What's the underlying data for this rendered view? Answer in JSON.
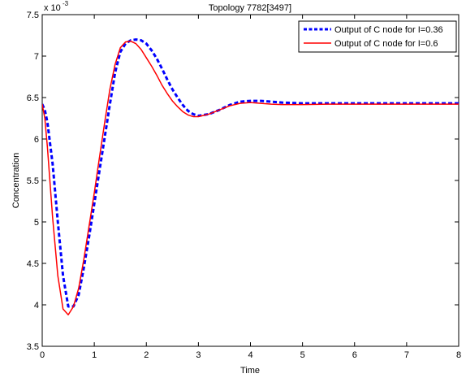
{
  "chart_data": {
    "type": "line",
    "title": "Topology 7782[3497]",
    "xlabel": "Time",
    "ylabel": "Concentration",
    "y_exponent_label": "x 10",
    "y_exponent_power": "-3",
    "xlim": [
      0,
      8
    ],
    "ylim": [
      3.5,
      7.5
    ],
    "x_ticks": [
      0,
      1,
      2,
      3,
      4,
      5,
      6,
      7,
      8
    ],
    "y_ticks": [
      3.5,
      4,
      4.5,
      5,
      5.5,
      6,
      6.5,
      7,
      7.5
    ],
    "x_tick_labels": [
      "0",
      "1",
      "2",
      "3",
      "4",
      "5",
      "6",
      "7",
      "8"
    ],
    "y_tick_labels": [
      "3.5",
      "4",
      "4.5",
      "5",
      "5.5",
      "6",
      "6.5",
      "7",
      "7.5"
    ],
    "grid": false,
    "legend_position": "top-right",
    "series": [
      {
        "name": "Output of C node for I=0.36",
        "color": "#0000ff",
        "style": "dashed",
        "x": [
          0,
          0.05,
          0.1,
          0.2,
          0.3,
          0.4,
          0.5,
          0.6,
          0.7,
          0.8,
          0.9,
          1.0,
          1.1,
          1.2,
          1.3,
          1.4,
          1.5,
          1.6,
          1.7,
          1.8,
          1.9,
          2.0,
          2.1,
          2.2,
          2.3,
          2.4,
          2.5,
          2.6,
          2.7,
          2.8,
          2.9,
          3.0,
          3.2,
          3.4,
          3.6,
          3.8,
          4.0,
          4.2,
          4.4,
          4.6,
          4.8,
          5.0,
          5.5,
          6.0,
          6.5,
          7.0,
          7.5,
          8.0
        ],
        "values": [
          6.42,
          6.35,
          6.2,
          5.7,
          5.0,
          4.35,
          3.98,
          3.98,
          4.12,
          4.45,
          4.82,
          5.22,
          5.62,
          6.02,
          6.42,
          6.8,
          7.05,
          7.15,
          7.19,
          7.2,
          7.19,
          7.15,
          7.07,
          6.97,
          6.85,
          6.72,
          6.6,
          6.5,
          6.41,
          6.34,
          6.3,
          6.28,
          6.3,
          6.35,
          6.41,
          6.45,
          6.46,
          6.46,
          6.45,
          6.44,
          6.435,
          6.43,
          6.43,
          6.43,
          6.43,
          6.43,
          6.43,
          6.43
        ]
      },
      {
        "name": "Output of C node for I=0.6",
        "color": "#ff0000",
        "style": "solid",
        "x": [
          0,
          0.05,
          0.1,
          0.2,
          0.3,
          0.4,
          0.5,
          0.6,
          0.7,
          0.8,
          0.9,
          1.0,
          1.1,
          1.2,
          1.3,
          1.4,
          1.5,
          1.6,
          1.7,
          1.8,
          1.9,
          2.0,
          2.1,
          2.2,
          2.3,
          2.4,
          2.5,
          2.6,
          2.7,
          2.8,
          2.9,
          3.0,
          3.2,
          3.4,
          3.6,
          3.8,
          4.0,
          4.2,
          4.4,
          4.6,
          4.8,
          5.0,
          5.5,
          6.0,
          6.5,
          7.0,
          7.5,
          8.0
        ],
        "values": [
          6.42,
          6.25,
          5.9,
          5.05,
          4.35,
          3.95,
          3.88,
          3.98,
          4.2,
          4.55,
          4.95,
          5.35,
          5.78,
          6.2,
          6.6,
          6.9,
          7.1,
          7.17,
          7.18,
          7.15,
          7.08,
          6.98,
          6.88,
          6.77,
          6.65,
          6.55,
          6.46,
          6.39,
          6.33,
          6.29,
          6.27,
          6.27,
          6.3,
          6.35,
          6.4,
          6.43,
          6.44,
          6.43,
          6.42,
          6.415,
          6.415,
          6.415,
          6.42,
          6.42,
          6.42,
          6.42,
          6.42,
          6.42
        ]
      }
    ]
  }
}
